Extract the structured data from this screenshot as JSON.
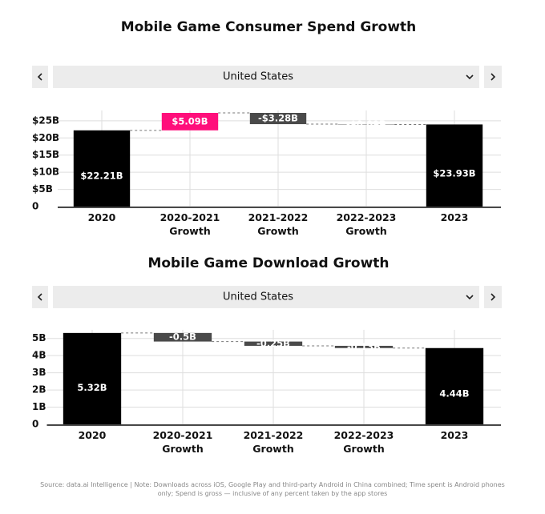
{
  "chart_data": [
    {
      "type": "waterfall",
      "title": "Mobile Game Consumer Spend Growth",
      "filter": "United States",
      "categories": [
        "2020",
        "2020-2021 Growth",
        "2021-2022 Growth",
        "2022-2023 Growth",
        "2023"
      ],
      "measure": [
        "absolute",
        "relative",
        "relative",
        "relative",
        "absolute"
      ],
      "values": [
        22.21,
        5.09,
        -3.28,
        -0.09,
        23.93
      ],
      "value_labels": [
        "$22.21B",
        "$5.09B",
        "-$3.28B",
        "-$0.09B",
        "$23.93B"
      ],
      "colors": {
        "absolute": "#000000",
        "increase": "#ff0f7b",
        "decrease": "#4a4a4a"
      },
      "ylim": [
        0,
        28
      ],
      "yticks": [
        0,
        {
          "value": 5,
          "label": "$5B"
        },
        {
          "value": 10,
          "label": "$10B"
        },
        {
          "value": 15,
          "label": "$15B"
        },
        {
          "value": 20,
          "label": "$20B"
        },
        {
          "value": 25,
          "label": "$25B"
        }
      ],
      "grid": true
    },
    {
      "type": "waterfall",
      "title": "Mobile Game Download Growth",
      "filter": "United States",
      "categories": [
        "2020",
        "2020-2021 Growth",
        "2021-2022 Growth",
        "2022-2023 Growth",
        "2023"
      ],
      "measure": [
        "absolute",
        "relative",
        "relative",
        "relative",
        "absolute"
      ],
      "values": [
        5.32,
        -0.5,
        -0.25,
        -0.13,
        4.44
      ],
      "value_labels": [
        "5.32B",
        "-0.5B",
        "-0.25B",
        "-0.13B",
        "4.44B"
      ],
      "colors": {
        "absolute": "#000000",
        "increase": "#ff0f7b",
        "decrease": "#4a4a4a"
      },
      "ylim": [
        0,
        5.5
      ],
      "yticks": [
        0,
        {
          "value": 1,
          "label": "1B"
        },
        {
          "value": 2,
          "label": "2B"
        },
        {
          "value": 3,
          "label": "3B"
        },
        {
          "value": 4,
          "label": "4B"
        },
        {
          "value": 5,
          "label": "5B"
        }
      ],
      "grid": true
    }
  ],
  "source": "Source: data.ai Intelligence | Note: Downloads across iOS, Google Play and third-party Android in China combined; Time spent is Android phones only; Spend is gross — inclusive of any percent taken by the app stores"
}
